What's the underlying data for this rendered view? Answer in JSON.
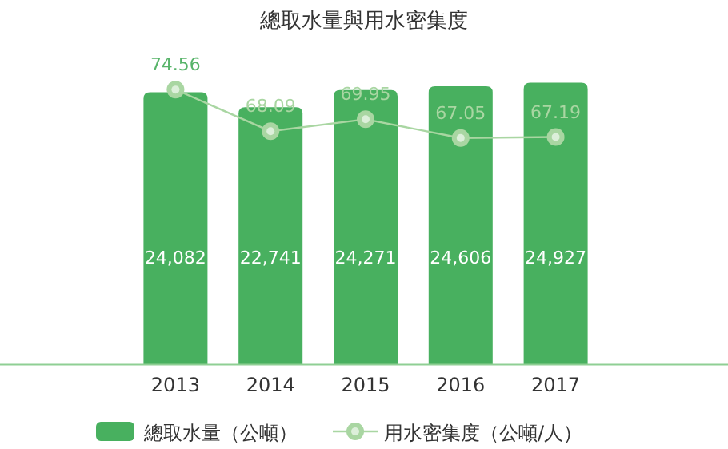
{
  "chart_data": {
    "type": "bar",
    "title": "總取水量與用水密集度",
    "categories": [
      "2013",
      "2014",
      "2015",
      "2016",
      "2017"
    ],
    "series": [
      {
        "name": "總取水量（公噸）",
        "color": "#48b05f",
        "values": [
          24082,
          22741,
          24271,
          24606,
          24927
        ],
        "value_labels": [
          "24,082",
          "22,741",
          "24,271",
          "24,606",
          "24,927"
        ]
      },
      {
        "name": "用水密集度（公噸/人）",
        "type": "line",
        "axis": "y2",
        "color": "#a9d6a2",
        "values": [
          74.56,
          68.09,
          69.95,
          67.05,
          67.19
        ]
      }
    ],
    "data_labels": true,
    "legend": "bottom",
    "marker": "circle",
    "line_style": "solid"
  }
}
